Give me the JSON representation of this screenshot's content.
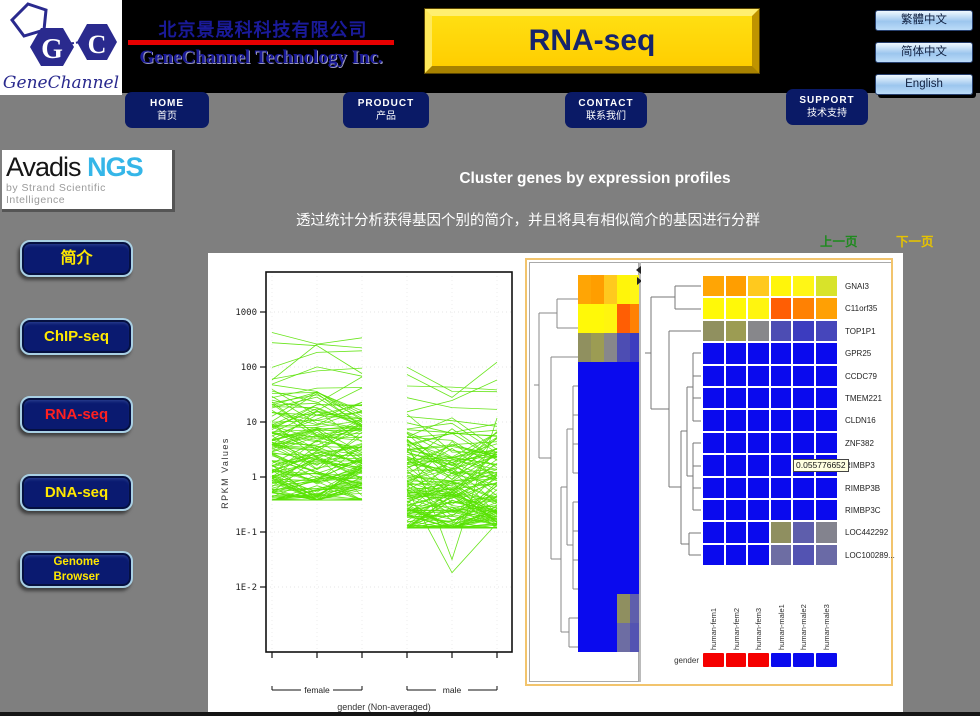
{
  "header": {
    "logo": {
      "letter_g": "G",
      "letter_c": "C",
      "brand": "GeneChannel"
    },
    "company_cn": "北京景晟科科技有限公司",
    "company_en": "GeneChannel Technology Inc.",
    "banner_label": "RNA-seq",
    "nav": [
      {
        "en": "HOME",
        "cn": "首页"
      },
      {
        "en": "PRODUCT",
        "cn": "产品"
      },
      {
        "en": "CONTACT",
        "cn": "联系我们"
      },
      {
        "en": "SUPPORT",
        "cn": "技术支持"
      }
    ],
    "lang_buttons": [
      "繁體中文",
      "简体中文",
      "English"
    ]
  },
  "sidebar": {
    "product_logo": {
      "name_black": "Avadis",
      "name_cyan": "NGS",
      "tagline": "by Strand Scientific Intelligence"
    },
    "items": [
      {
        "label": "简介",
        "text_color": "#ffe800",
        "active": false,
        "font_size": 16
      },
      {
        "label": "ChIP-seq",
        "text_color": "#ffe800",
        "active": false,
        "font_size": 15
      },
      {
        "label": "RNA-seq",
        "text_color": "#ff2020",
        "active": true,
        "font_size": 15
      },
      {
        "label": "DNA-seq",
        "text_color": "#ffe800",
        "active": false,
        "font_size": 15
      },
      {
        "label": "Genome Browser",
        "text_color": "#ffe800",
        "active": false,
        "font_size": 11.5,
        "two_line": true
      }
    ]
  },
  "content": {
    "title": "Cluster genes by expression profiles",
    "subtitle": "透过统计分析获得基因个别的简介，并且将具有相似简介的基因进行分群",
    "pager": {
      "prev": "上一页",
      "prev_color": "#1e8a1e",
      "next": "下一页",
      "next_color": "#e6c300"
    }
  },
  "chart_data": [
    {
      "type": "line",
      "title": "",
      "ylabel": "RPKM Values",
      "xlabel": "gender (Non-averaged)",
      "yscale": "log",
      "yticks": [
        {
          "label": "1000",
          "value": 1000
        },
        {
          "label": "100",
          "value": 100
        },
        {
          "label": "10",
          "value": 10
        },
        {
          "label": "1",
          "value": 1
        },
        {
          "label": "1E-1",
          "value": 0.1
        },
        {
          "label": "1E-2",
          "value": 0.01
        }
      ],
      "ylim": [
        0.003,
        5000
      ],
      "points_per_line": 3,
      "line_color": "#58e202",
      "seed": 1234,
      "groups": [
        {
          "name": "female",
          "n_lines": 135,
          "typical_range": [
            0.4,
            40
          ],
          "outlier_max": 420,
          "min_value": 0.38
        },
        {
          "name": "male",
          "n_lines": 135,
          "typical_range": [
            0.15,
            70
          ],
          "outlier_max": 150,
          "min_value": 0.018
        }
      ],
      "note": "dense parallel-coordinate plot; individual line values estimated from pixels"
    },
    {
      "type": "heatmap",
      "genes": [
        "GNAI3",
        "C11orf35",
        "TOP1P1",
        "GPR25",
        "CCDC79",
        "TMEM221",
        "CLDN16",
        "ZNF382",
        "RIMBP3",
        "RIMBP3B",
        "RIMBP3C",
        "LOC442292",
        "LOC100289..."
      ],
      "samples": [
        "human-fem1",
        "human-fem2",
        "human-fem3",
        "human-male1",
        "human-male2",
        "human-male3"
      ],
      "cell_colors": [
        [
          "#ffa505",
          "#ff9e00",
          "#ffc91e",
          "#fff50a",
          "#fff616",
          "#d8e32a"
        ],
        [
          "#fff908",
          "#fff908",
          "#fff50f",
          "#ff5e04",
          "#ff8103",
          "#ffa004"
        ],
        [
          "#90905f",
          "#9c9c53",
          "#87878b",
          "#4d4db3",
          "#3c3cbf",
          "#4646bb"
        ],
        [
          "#0a0aee",
          "#0a0aee",
          "#0a0aee",
          "#0a0aee",
          "#0a0aee",
          "#0a0aee"
        ],
        [
          "#0a0aee",
          "#0a0aee",
          "#0a0aee",
          "#0a0aee",
          "#0a0aee",
          "#0a0aee"
        ],
        [
          "#0a0aee",
          "#0a0aee",
          "#0a0aee",
          "#0a0aee",
          "#0a0aee",
          "#0a0aee"
        ],
        [
          "#0a0aee",
          "#0a0aee",
          "#0a0aee",
          "#0a0aee",
          "#0a0aee",
          "#0a0aee"
        ],
        [
          "#0a0aee",
          "#0a0aee",
          "#0a0aee",
          "#0a0aee",
          "#0a0aee",
          "#0a0aee"
        ],
        [
          "#0a0aee",
          "#0a0aee",
          "#0a0aee",
          "#0a0aee",
          "#0a0aee",
          "#0a0aee"
        ],
        [
          "#0a0aee",
          "#0a0aee",
          "#0a0aee",
          "#0a0aee",
          "#0a0aee",
          "#0a0aee"
        ],
        [
          "#0a0aee",
          "#0a0aee",
          "#0a0aee",
          "#0a0aee",
          "#0a0aee",
          "#0a0aee"
        ],
        [
          "#0a0aee",
          "#0a0aee",
          "#0a0aee",
          "#8f8f60",
          "#5e5eac",
          "#83838e"
        ],
        [
          "#0a0aee",
          "#0a0aee",
          "#0a0aee",
          "#6d6da3",
          "#5353b2",
          "#6a6aa6"
        ]
      ],
      "gender_track": {
        "label": "gender",
        "colors": [
          "#f50000",
          "#f50000",
          "#f50000",
          "#0a0aee",
          "#0a0aee",
          "#0a0aee"
        ]
      },
      "tooltip_value": "0.055776652"
    }
  ]
}
